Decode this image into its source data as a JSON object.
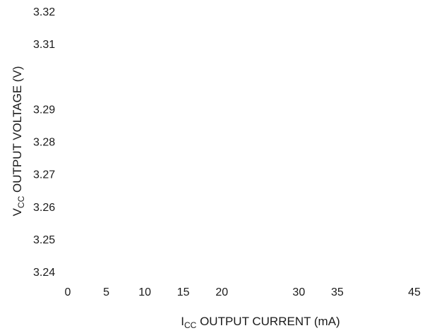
{
  "chart_data": {
    "type": "line",
    "title": "",
    "xlabel": {
      "main": "I",
      "sub": "CC",
      "rest": " OUTPUT CURRENT (mA)"
    },
    "ylabel": {
      "main": "V",
      "sub": "CC",
      "rest": " OUTPUT VOLTAGE (V)"
    },
    "x_ticks": [
      "0",
      "5",
      "10",
      "15",
      "20",
      "30",
      "35",
      "45"
    ],
    "x_tick_values": [
      0,
      5,
      10,
      15,
      20,
      30,
      35,
      45
    ],
    "y_ticks": [
      "3.32",
      "3.31",
      "3.29",
      "3.28",
      "3.27",
      "3.26",
      "3.25",
      "3.24"
    ],
    "y_tick_values": [
      3.32,
      3.31,
      3.29,
      3.28,
      3.27,
      3.26,
      3.25,
      3.24
    ],
    "xlim": [
      0,
      45
    ],
    "ylim": [
      3.24,
      3.32
    ],
    "grid": false,
    "series": []
  }
}
